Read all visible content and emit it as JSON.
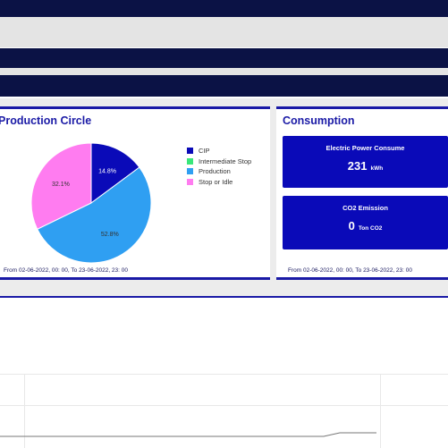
{
  "production_circle": {
    "title": "Production Circle",
    "date_range": "From 02-06-2022, 00: 00, To 23-06-2022, 23: 00",
    "legend": [
      {
        "label": "CIP",
        "color": "#0a0ab8"
      },
      {
        "label": "Intermediate Stop",
        "color": "#39e77a"
      },
      {
        "label": "Production",
        "color": "#2f9ff2"
      },
      {
        "label": "Stop or Idle",
        "color": "#ff7cf0"
      }
    ]
  },
  "consumption": {
    "title": "Consumption",
    "electric": {
      "title": "Electric Power Consume",
      "value": "231",
      "unit": "kWh"
    },
    "co2": {
      "title": "CO2 Emission",
      "value": "0",
      "unit": "Ton CO2"
    },
    "date_range": "From 02-06-2022, 00: 00, To 23-06-2022, 23: 00"
  },
  "chart_data": {
    "type": "pie",
    "categories": [
      "CIP",
      "Intermediate Stop",
      "Production",
      "Stop or Idle"
    ],
    "values": [
      14.8,
      0,
      52.8,
      32.1
    ],
    "labels": [
      "14.8%",
      "",
      "52.8%",
      "32.1%"
    ],
    "colors": [
      "#0a0ab8",
      "#39e77a",
      "#2f9ff2",
      "#ff7cf0"
    ],
    "title": "Production Circle"
  }
}
